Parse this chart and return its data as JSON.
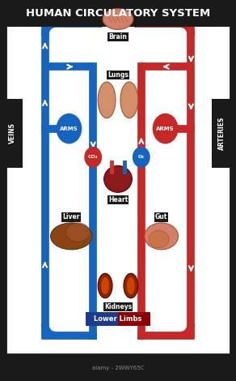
{
  "title": "HUMAN CIRCULATORY SYSTEM",
  "title_bg": "#1a1a1a",
  "title_color": "#ffffff",
  "title_fontsize": 11,
  "bg_color": "#ffffff",
  "border_color": "#1a1a1a",
  "blue_color": "#1565C0",
  "red_color": "#C62828",
  "labels": {
    "brain": "Brain",
    "lungs": "Lungs",
    "arms_left": "ARMS",
    "arms_right": "ARMS",
    "veins": "VEINS",
    "arteries": "ARTERIES",
    "co2": "CO₂",
    "o2": "O₂",
    "heart": "Heart",
    "liver": "Liver",
    "gut": "Gut",
    "kidneys": "Kidneys",
    "lower_limbs": "Lower Limbs"
  },
  "label_bg": {
    "dark": "#1a1a1a",
    "blue_red_gradient": true
  },
  "watermark": "alamy - 2WWY65C"
}
